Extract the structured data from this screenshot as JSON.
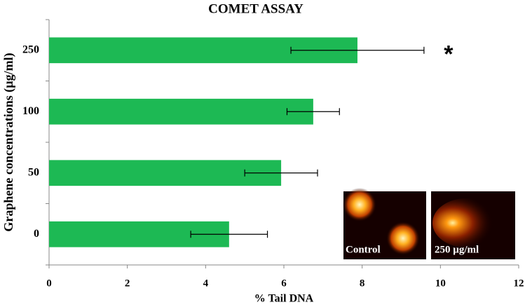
{
  "chart_data": {
    "type": "bar",
    "orientation": "horizontal",
    "title": "COMET ASSAY",
    "xlabel": "% Tail DNA",
    "ylabel": "Graphene concentrations (µg/ml)",
    "categories": [
      "0",
      "50",
      "100",
      "250"
    ],
    "values": [
      4.6,
      5.93,
      6.75,
      7.88
    ],
    "errors": [
      0.98,
      0.93,
      0.67,
      1.7
    ],
    "color": "#1db954",
    "xlim": [
      0,
      12
    ],
    "xticks": [
      0,
      2,
      4,
      6,
      8,
      10,
      12
    ],
    "annotations": [
      {
        "category": "250",
        "text": "*"
      }
    ],
    "insets": [
      "Control",
      "250 µg/ml"
    ]
  }
}
